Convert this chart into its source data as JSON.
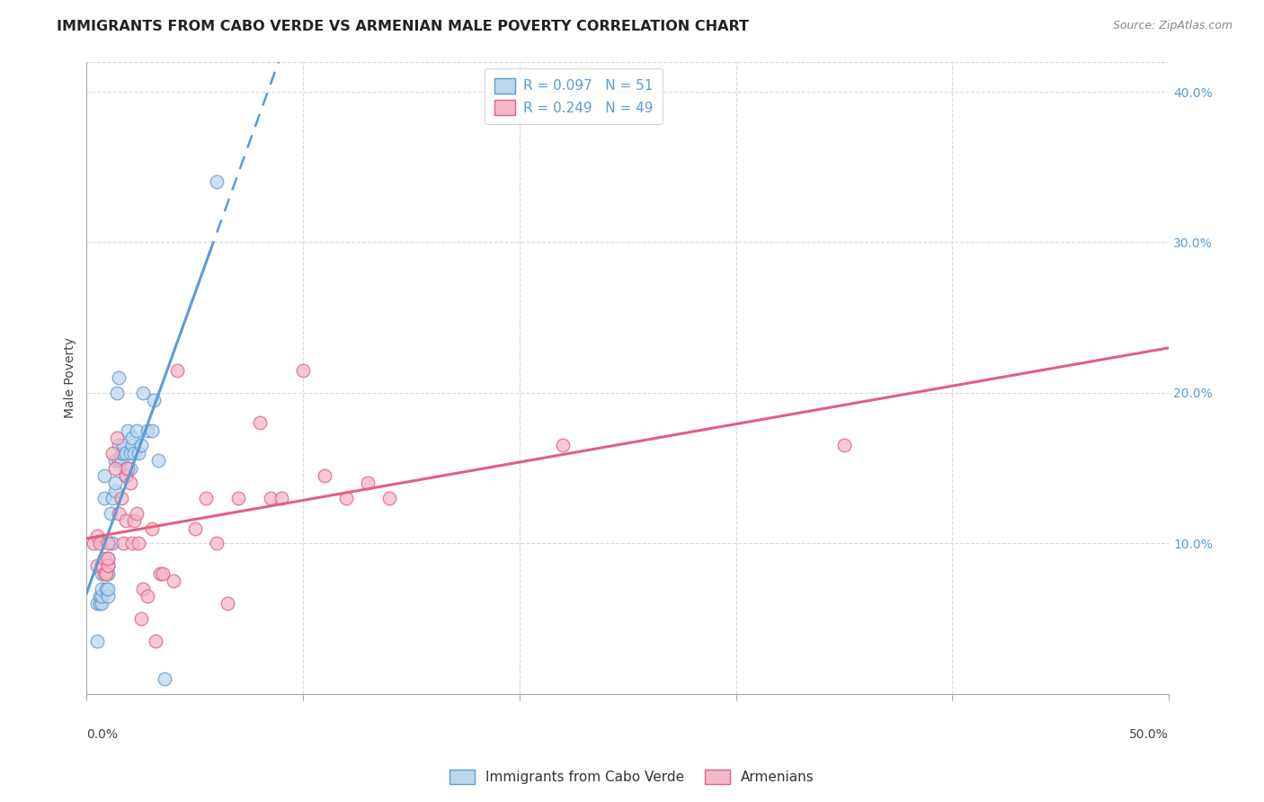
{
  "title": "IMMIGRANTS FROM CABO VERDE VS ARMENIAN MALE POVERTY CORRELATION CHART",
  "source": "Source: ZipAtlas.com",
  "ylabel": "Male Poverty",
  "xlim": [
    0.0,
    0.5
  ],
  "ylim": [
    0.0,
    0.42
  ],
  "yticks": [
    0.1,
    0.2,
    0.3,
    0.4
  ],
  "ytick_labels": [
    "10.0%",
    "20.0%",
    "30.0%",
    "40.0%"
  ],
  "xtick_labels": [
    "0.0%",
    "",
    "",
    "",
    "",
    "50.0%"
  ],
  "background_color": "#ffffff",
  "grid_color": "#d8d8e8",
  "blue_color": "#5b9bd5",
  "blue_fill": "#bdd7ee",
  "pink_color": "#e06080",
  "pink_fill": "#f4b8c8",
  "legend_R_blue": "R = 0.097",
  "legend_N_blue": "N = 51",
  "legend_R_pink": "R = 0.249",
  "legend_N_pink": "N = 49",
  "legend_label_blue": "Immigrants from Cabo Verde",
  "legend_label_pink": "Armenians",
  "blue_x": [
    0.005,
    0.005,
    0.006,
    0.006,
    0.007,
    0.007,
    0.007,
    0.007,
    0.008,
    0.008,
    0.009,
    0.009,
    0.01,
    0.01,
    0.01,
    0.01,
    0.01,
    0.011,
    0.011,
    0.012,
    0.012,
    0.013,
    0.013,
    0.013,
    0.014,
    0.015,
    0.015,
    0.015,
    0.016,
    0.016,
    0.017,
    0.017,
    0.018,
    0.018,
    0.018,
    0.019,
    0.02,
    0.02,
    0.021,
    0.021,
    0.022,
    0.023,
    0.024,
    0.025,
    0.026,
    0.028,
    0.03,
    0.031,
    0.033,
    0.036,
    0.06
  ],
  "blue_y": [
    0.035,
    0.06,
    0.06,
    0.065,
    0.06,
    0.065,
    0.07,
    0.08,
    0.13,
    0.145,
    0.07,
    0.08,
    0.065,
    0.07,
    0.08,
    0.085,
    0.09,
    0.1,
    0.12,
    0.1,
    0.13,
    0.135,
    0.14,
    0.155,
    0.2,
    0.155,
    0.165,
    0.21,
    0.155,
    0.16,
    0.16,
    0.165,
    0.145,
    0.15,
    0.16,
    0.175,
    0.15,
    0.16,
    0.165,
    0.17,
    0.16,
    0.175,
    0.16,
    0.165,
    0.2,
    0.175,
    0.175,
    0.195,
    0.155,
    0.01,
    0.34
  ],
  "pink_x": [
    0.003,
    0.005,
    0.005,
    0.006,
    0.007,
    0.008,
    0.008,
    0.009,
    0.01,
    0.01,
    0.01,
    0.012,
    0.013,
    0.014,
    0.015,
    0.016,
    0.017,
    0.018,
    0.018,
    0.019,
    0.02,
    0.021,
    0.022,
    0.023,
    0.024,
    0.025,
    0.026,
    0.028,
    0.03,
    0.032,
    0.034,
    0.035,
    0.04,
    0.042,
    0.05,
    0.055,
    0.06,
    0.065,
    0.07,
    0.08,
    0.085,
    0.09,
    0.1,
    0.11,
    0.12,
    0.13,
    0.14,
    0.22,
    0.35
  ],
  "pink_y": [
    0.1,
    0.085,
    0.105,
    0.1,
    0.085,
    0.08,
    0.09,
    0.08,
    0.085,
    0.09,
    0.1,
    0.16,
    0.15,
    0.17,
    0.12,
    0.13,
    0.1,
    0.115,
    0.145,
    0.15,
    0.14,
    0.1,
    0.115,
    0.12,
    0.1,
    0.05,
    0.07,
    0.065,
    0.11,
    0.035,
    0.08,
    0.08,
    0.075,
    0.215,
    0.11,
    0.13,
    0.1,
    0.06,
    0.13,
    0.18,
    0.13,
    0.13,
    0.215,
    0.145,
    0.13,
    0.14,
    0.13,
    0.165,
    0.165
  ],
  "title_fontsize": 11.5,
  "axis_label_fontsize": 10,
  "tick_fontsize": 10,
  "source_fontsize": 9,
  "legend_fontsize": 11
}
